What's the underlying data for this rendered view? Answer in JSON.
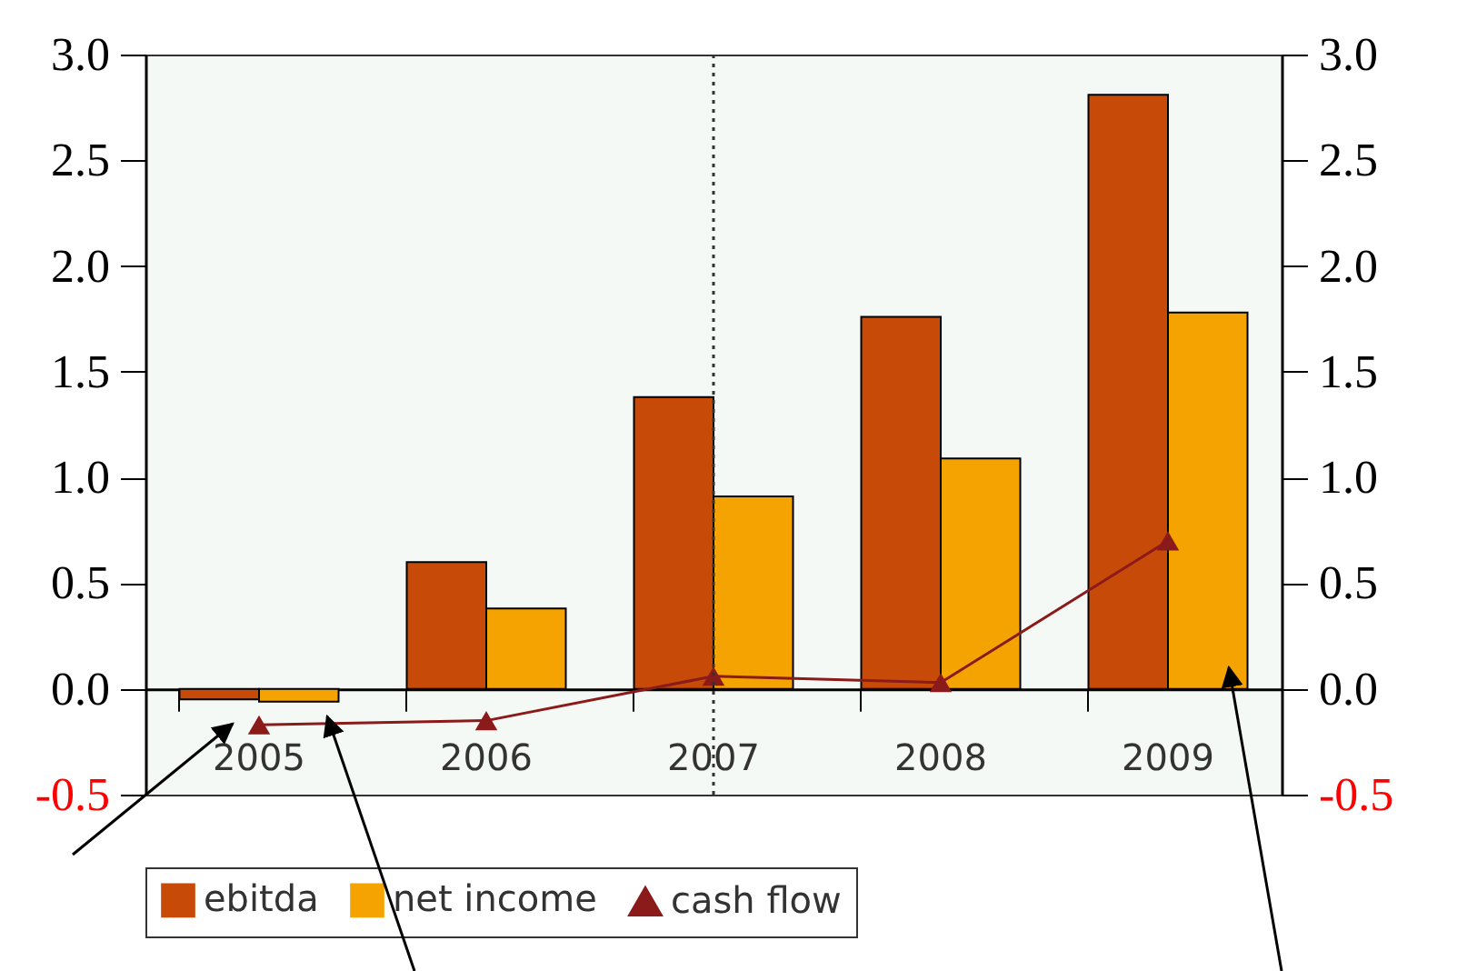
{
  "chart_data": {
    "type": "bar",
    "categories": [
      "2005",
      "2006",
      "2007",
      "2008",
      "2009"
    ],
    "series": [
      {
        "name": "ebitda",
        "color": "#c84a08",
        "values": [
          -0.05,
          0.6,
          1.38,
          1.76,
          2.81
        ]
      },
      {
        "name": "net income",
        "color": "#f5a300",
        "values": [
          -0.06,
          0.38,
          0.91,
          1.09,
          1.78
        ]
      },
      {
        "name": "cash flow",
        "type": "line",
        "color": "#8b1a1a",
        "values": [
          -0.17,
          -0.15,
          0.06,
          0.03,
          0.7
        ]
      }
    ],
    "ylim": [
      -0.5,
      3.0
    ],
    "yticks": [
      {
        "value": -0.5,
        "label": "-0.5"
      },
      {
        "value": 0,
        "label": "0.0"
      },
      {
        "value": 0.5,
        "label": "0.5"
      },
      {
        "value": 1,
        "label": "1.0"
      },
      {
        "value": 1.5,
        "label": "1.5"
      },
      {
        "value": 2,
        "label": "2.0"
      },
      {
        "value": 2.5,
        "label": "2.5"
      },
      {
        "value": 3,
        "label": "3.0"
      }
    ],
    "y2lim": [
      -0.5,
      3.0
    ],
    "y2ticks": [
      {
        "value": -0.5,
        "label": "-0.5"
      },
      {
        "value": 0,
        "label": "0.0"
      },
      {
        "value": 0.5,
        "label": "0.5"
      },
      {
        "value": 1,
        "label": "1.0"
      },
      {
        "value": 1.5,
        "label": "1.5"
      },
      {
        "value": 2,
        "label": "2.0"
      },
      {
        "value": 2.5,
        "label": "2.5"
      },
      {
        "value": 3,
        "label": "3.0"
      }
    ],
    "ref_lines": [
      {
        "axis": "x",
        "value": "2007",
        "line_style": "dotted",
        "color": "#333333"
      }
    ],
    "marker": "triangle",
    "legend": "bottom",
    "grid": false
  }
}
